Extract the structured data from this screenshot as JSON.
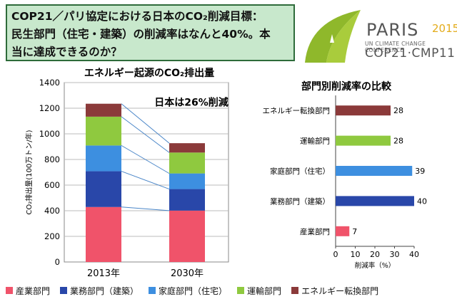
{
  "title": {
    "line1": "COP21／パリ協定における日本のCO₂削減目標：",
    "line2": "民生部門（住宅・建築）の削減率はなんと40%。本",
    "line3": "当に達成できるのか？"
  },
  "logo": {
    "paris": "PARIS",
    "year": "2015",
    "subtitle": "UN CLIMATE CHANGE CONFERENCE",
    "cop": "COP21·CMP11"
  },
  "colors": {
    "industry": "#f0536a",
    "business": "#2947a9",
    "household": "#3d8fe0",
    "transport": "#8fc93f",
    "energy": "#8b3a3a"
  },
  "chart_data": [
    {
      "type": "bar",
      "stacked": true,
      "title": "エネルギー起源のCO₂排出量",
      "ylabel": "CO₂排出量(100万トン/年)",
      "ylim": [
        0,
        1400
      ],
      "yticks": [
        0,
        200,
        400,
        600,
        800,
        1000,
        1200,
        1400
      ],
      "grid": true,
      "categories": [
        "2013年",
        "2030年"
      ],
      "series": [
        {
          "name": "産業部門",
          "color_key": "industry",
          "values": [
            429,
            401
          ]
        },
        {
          "name": "業務部門（建築）",
          "color_key": "business",
          "values": [
            279,
            168
          ]
        },
        {
          "name": "家庭部門（住宅）",
          "color_key": "household",
          "values": [
            201,
            122
          ]
        },
        {
          "name": "運輸部門",
          "color_key": "transport",
          "values": [
            225,
            163
          ]
        },
        {
          "name": "エネルギー転換部門",
          "color_key": "energy",
          "values": [
            101,
            73
          ]
        }
      ],
      "annotation": "日本は26%削減"
    },
    {
      "type": "bar",
      "orientation": "horizontal",
      "title": "部門別削減率の比較",
      "xlabel": "削減率（%）",
      "xlim": [
        0,
        40
      ],
      "xticks": [
        0,
        10,
        20,
        30,
        40
      ],
      "grid": false,
      "categories": [
        "エネルギー転換部門",
        "運輸部門",
        "家庭部門（住宅）",
        "業務部門（建築）",
        "産業部門"
      ],
      "color_keys": [
        "energy",
        "transport",
        "household",
        "business",
        "industry"
      ],
      "values": [
        28,
        28,
        39,
        40,
        7
      ]
    }
  ],
  "legend": [
    {
      "label": "産業部門",
      "color_key": "industry"
    },
    {
      "label": "業務部門（建築）",
      "color_key": "business"
    },
    {
      "label": "家庭部門（住宅）",
      "color_key": "household"
    },
    {
      "label": "運輸部門",
      "color_key": "transport"
    },
    {
      "label": "エネルギー転換部門",
      "color_key": "energy"
    }
  ]
}
